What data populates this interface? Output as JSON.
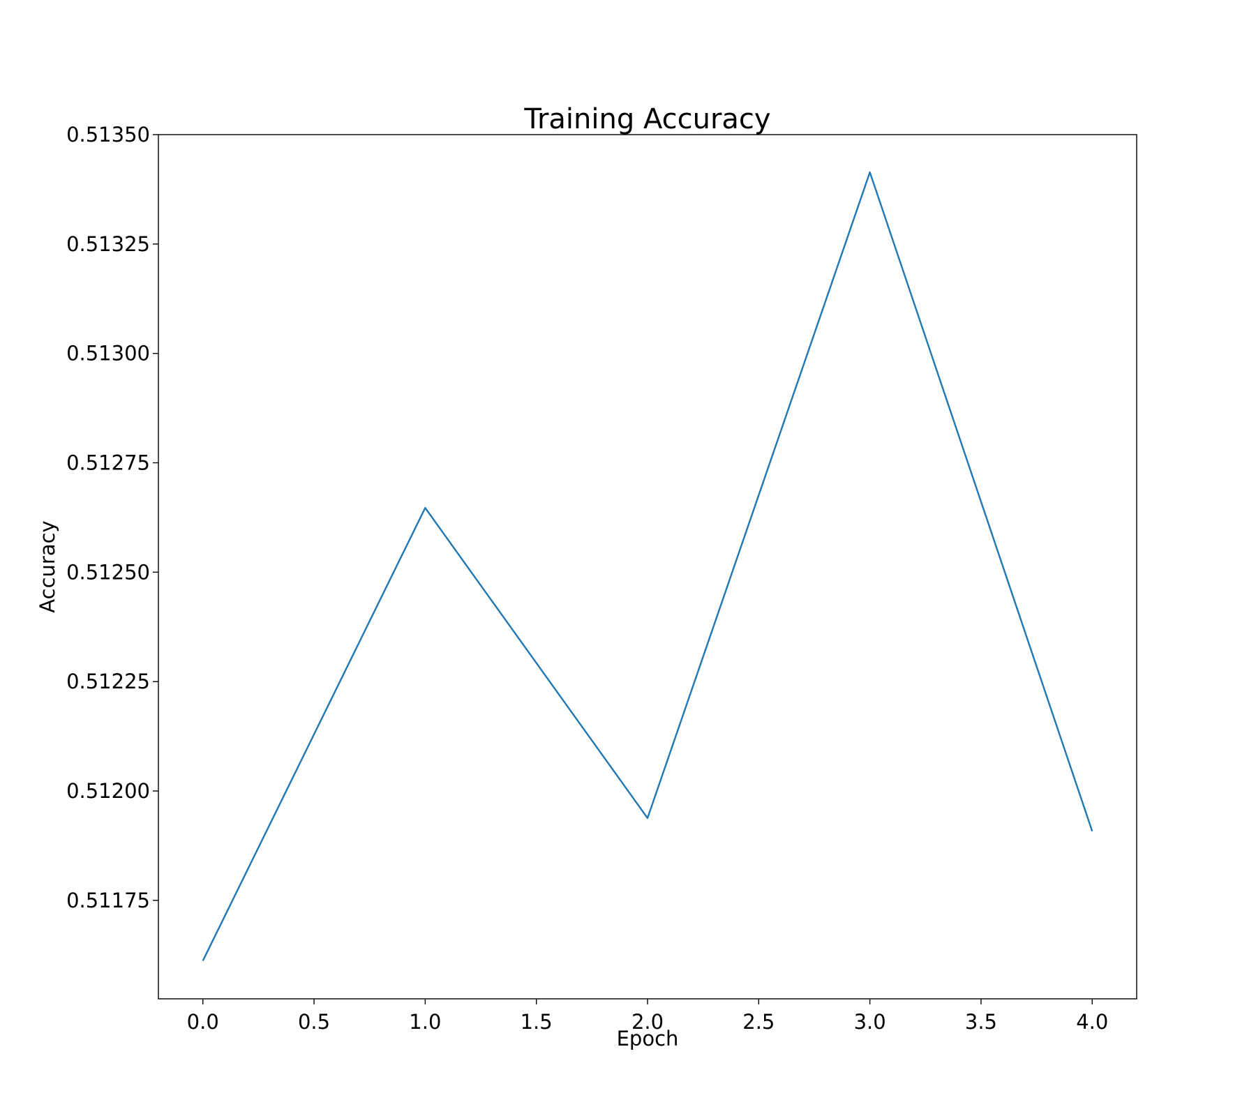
{
  "chart_data": {
    "type": "line",
    "title": "Training Accuracy",
    "xlabel": "Epoch",
    "ylabel": "Accuracy",
    "xlim": [
      -0.2,
      4.2
    ],
    "ylim": [
      0.511525,
      0.5135
    ],
    "x_ticks": [
      0.0,
      0.5,
      1.0,
      1.5,
      2.0,
      2.5,
      3.0,
      3.5,
      4.0
    ],
    "x_tick_labels": [
      "0.0",
      "0.5",
      "1.0",
      "1.5",
      "2.0",
      "2.5",
      "3.0",
      "3.5",
      "4.0"
    ],
    "y_ticks": [
      0.51175,
      0.512,
      0.51225,
      0.5125,
      0.51275,
      0.513,
      0.51325,
      0.5135
    ],
    "y_tick_labels": [
      "0.51175",
      "0.51200",
      "0.51225",
      "0.51250",
      "0.51275",
      "0.51300",
      "0.51325",
      "0.51350"
    ],
    "grid": false,
    "series": [
      {
        "x": [
          0,
          1,
          2,
          3,
          4
        ],
        "values": [
          0.511612,
          0.512647,
          0.511938,
          0.513414,
          0.511908
        ],
        "color": "#1f77b4"
      }
    ]
  }
}
